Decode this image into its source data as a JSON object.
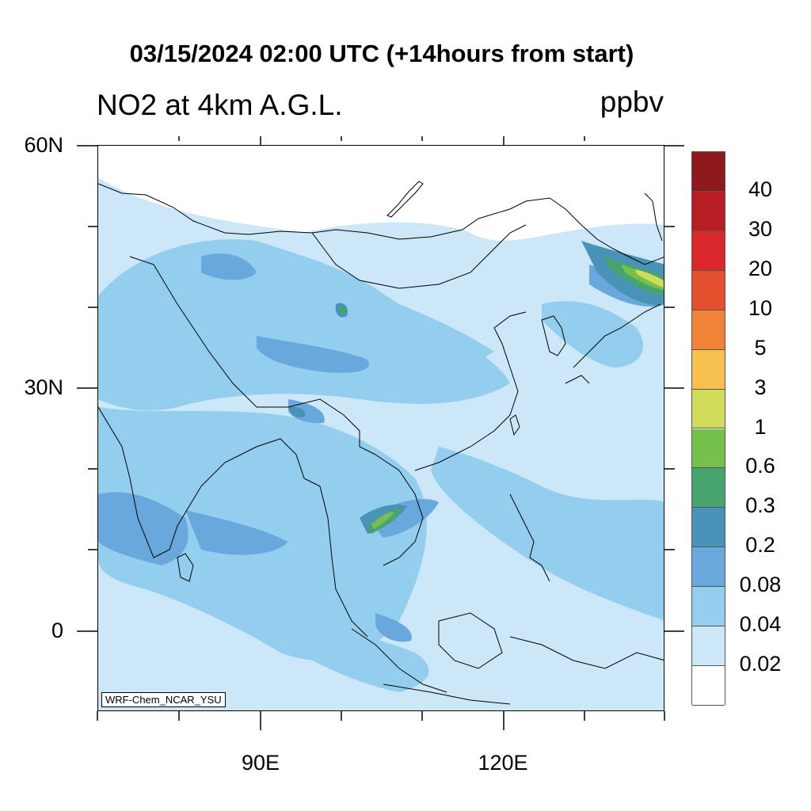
{
  "title": "03/15/2024 02:00 UTC (+14hours from start)",
  "subtitle": "NO2 at 4km A.G.L.",
  "units": "ppbv",
  "credit": "WRF-Chem_NCAR_YSU",
  "lat_labels": [
    "60N",
    "30N",
    "0"
  ],
  "lon_labels": [
    "90E",
    "120E"
  ],
  "colorbar": {
    "labels": [
      "40",
      "30",
      "20",
      "10",
      "5",
      "3",
      "1",
      "0.6",
      "0.3",
      "0.2",
      "0.08",
      "0.04",
      "0.02"
    ],
    "colors": [
      "#8e1a1d",
      "#b81d24",
      "#d9282b",
      "#e4502e",
      "#f08336",
      "#f7c04f",
      "#d1dd5a",
      "#75c04b",
      "#47a46e",
      "#4992b8",
      "#68a8dc",
      "#94ceef",
      "#cbe7f8",
      "#ffffff"
    ]
  }
}
